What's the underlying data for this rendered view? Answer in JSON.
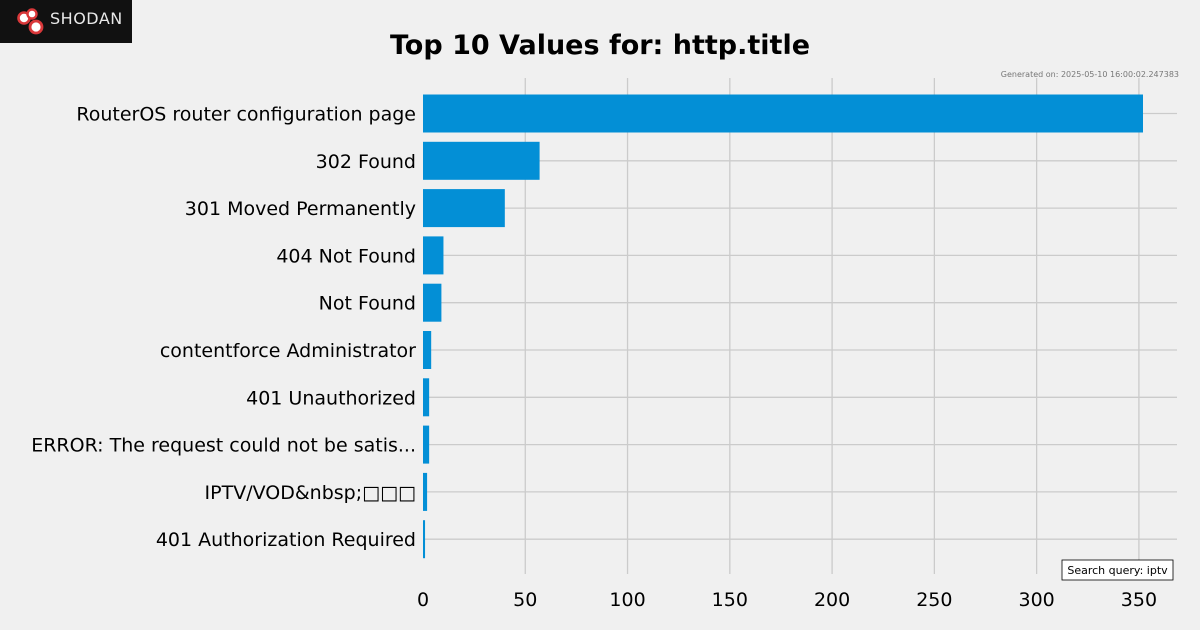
{
  "brand": {
    "name": "SHODAN",
    "logo_icon": "shodan-logo-icon"
  },
  "chart_data": {
    "type": "bar",
    "orientation": "horizontal",
    "title": "Top 10 Values for: http.title",
    "generated_text": "Generated on: 2025-05-10 16:00:02.247383",
    "query_label": "Search query: iptv",
    "categories": [
      "RouterOS router configuration page",
      "302 Found",
      "301 Moved Permanently",
      "404 Not Found",
      "Not Found",
      "contentforce Administrator",
      "401 Unauthorized",
      "ERROR: The request could not be satis...",
      "IPTV/VOD&nbsp;□□□",
      "401 Authorization Required"
    ],
    "values": [
      352,
      57,
      40,
      10,
      9,
      4,
      3,
      3,
      2,
      1
    ],
    "xlim": [
      0,
      368
    ],
    "xticks": [
      0,
      50,
      100,
      150,
      200,
      250,
      300,
      350
    ],
    "grid": true,
    "bar_color": "#038fd6",
    "background_color": "#f0f0f0",
    "grid_color": "#cbcbcb"
  }
}
